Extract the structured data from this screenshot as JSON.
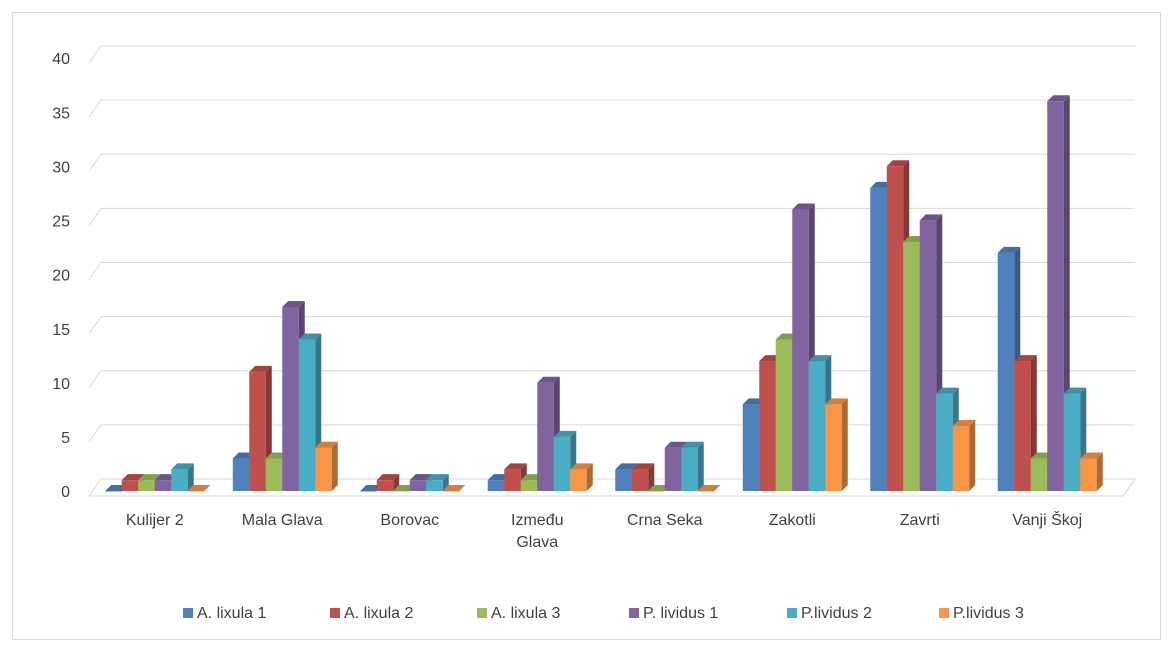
{
  "chart_data": {
    "type": "bar3d",
    "categories": [
      "Kulijer 2",
      "Mala Glava",
      "Borovac",
      "Između Glava",
      "Crna Seka",
      "Zakotli",
      "Zavrti",
      "Vanji Škoj"
    ],
    "series": [
      {
        "name": "A. lixula 1",
        "color": "#4f81bd",
        "values": [
          0,
          3,
          0,
          1,
          2,
          8,
          28,
          22
        ]
      },
      {
        "name": "A. lixula 2",
        "color": "#c0504d",
        "values": [
          1,
          11,
          1,
          2,
          2,
          12,
          30,
          12
        ]
      },
      {
        "name": "A. lixula 3",
        "color": "#9bbb59",
        "values": [
          1,
          3,
          0,
          1,
          0,
          14,
          23,
          3
        ]
      },
      {
        "name": "P. lividus 1",
        "color": "#8064a2",
        "values": [
          1,
          17,
          1,
          10,
          4,
          26,
          25,
          36
        ]
      },
      {
        "name": "P.lividus 2",
        "color": "#4bacc6",
        "values": [
          2,
          14,
          1,
          5,
          4,
          12,
          9,
          9
        ]
      },
      {
        "name": "P.lividus 3",
        "color": "#f79646",
        "values": [
          0,
          4,
          0,
          2,
          0,
          8,
          6,
          3
        ]
      }
    ],
    "ylim": [
      0,
      40
    ],
    "yticks": [
      0,
      5,
      10,
      15,
      20,
      25,
      30,
      35,
      40
    ],
    "grid": true,
    "legend": "bottom"
  }
}
